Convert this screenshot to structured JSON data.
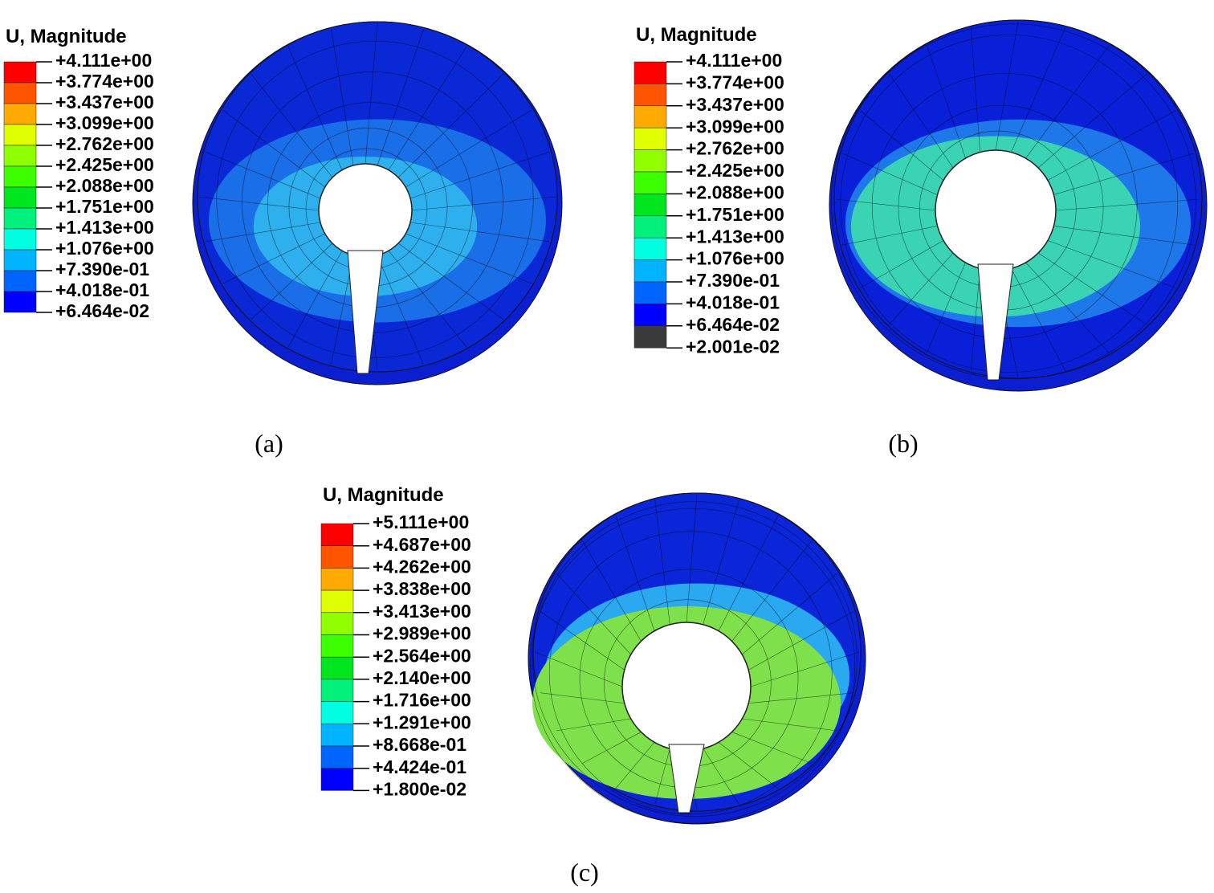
{
  "panels": [
    {
      "legend_title": "U, Magnitude",
      "labels": [
        "+4.111e+00",
        "+3.774e+00",
        "+3.437e+00",
        "+3.099e+00",
        "+2.762e+00",
        "+2.425e+00",
        "+2.088e+00",
        "+1.751e+00",
        "+1.413e+00",
        "+1.076e+00",
        "+7.390e-01",
        "+4.018e-01",
        "+6.464e-02"
      ],
      "caption": "(a)"
    },
    {
      "legend_title": "U, Magnitude",
      "labels": [
        "+4.111e+00",
        "+3.774e+00",
        "+3.437e+00",
        "+3.099e+00",
        "+2.762e+00",
        "+2.425e+00",
        "+2.088e+00",
        "+1.751e+00",
        "+1.413e+00",
        "+1.076e+00",
        "+7.390e-01",
        "+4.018e-01",
        "+6.464e-02",
        "+2.001e-02"
      ],
      "caption": "(b)"
    },
    {
      "legend_title": "U, Magnitude",
      "labels": [
        "+5.111e+00",
        "+4.687e+00",
        "+4.262e+00",
        "+3.838e+00",
        "+3.413e+00",
        "+2.989e+00",
        "+2.564e+00",
        "+2.140e+00",
        "+1.716e+00",
        "+1.291e+00",
        "+8.668e-01",
        "+4.424e-01",
        "+1.800e-02"
      ],
      "caption": "(c)"
    }
  ]
}
